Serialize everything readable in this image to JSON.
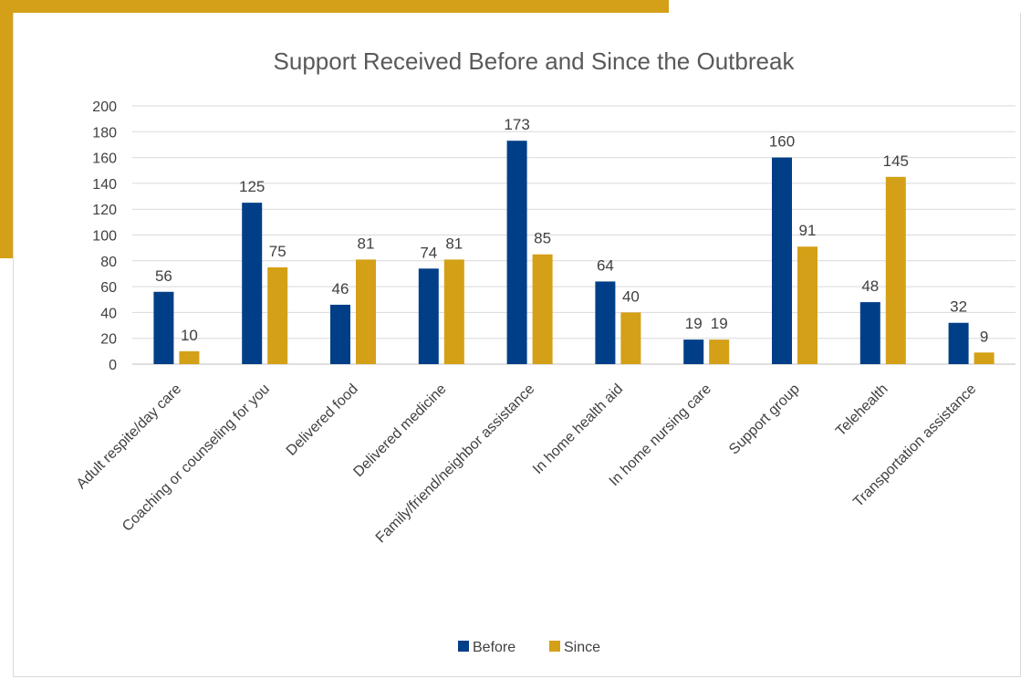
{
  "chart_data": {
    "type": "bar",
    "title": "Support Received Before and Since the Outbreak",
    "categories": [
      "Adult respite/day care",
      "Coaching or counseling for you",
      "Delivered food",
      "Delivered medicine",
      "Family/friend/neighbor assistance",
      "In home health aid",
      "In home nursing care",
      "Support group",
      "Telehealth",
      "Transportation assistance"
    ],
    "series": [
      {
        "name": "Before",
        "color": "#003F87",
        "values": [
          56,
          125,
          46,
          74,
          173,
          64,
          19,
          160,
          48,
          32
        ]
      },
      {
        "name": "Since",
        "color": "#D4A017",
        "values": [
          10,
          75,
          81,
          81,
          85,
          40,
          19,
          91,
          145,
          9
        ]
      }
    ],
    "ylim": [
      0,
      200
    ],
    "yticks": [
      0,
      20,
      40,
      60,
      80,
      100,
      120,
      140,
      160,
      180,
      200
    ],
    "grid": true,
    "legend_position": "bottom",
    "data_labels": true
  }
}
